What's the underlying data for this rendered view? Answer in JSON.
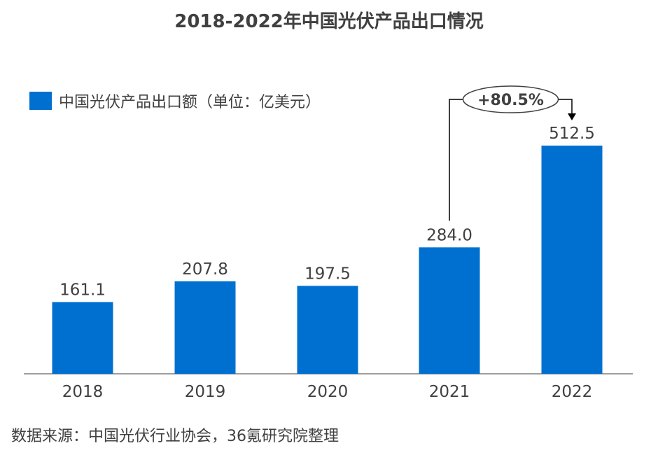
{
  "chart_data": {
    "type": "bar",
    "title": "2018-2022年中国光伏产品出口情况",
    "categories": [
      "2018",
      "2019",
      "2020",
      "2021",
      "2022"
    ],
    "series": [
      {
        "name": "中国光伏产品出口额（单位：亿美元）",
        "values": [
          161.1,
          207.8,
          197.5,
          284.0,
          512.5
        ]
      }
    ],
    "data_labels": [
      "161.1",
      "207.8",
      "197.5",
      "284.0",
      "512.5"
    ],
    "annotation": {
      "text": "+80.5%",
      "from_category": "2021",
      "to_category": "2022"
    },
    "ylim": [
      0,
      560
    ],
    "grid": false,
    "legend_position": "top-left",
    "xlabel": "",
    "ylabel": ""
  },
  "colors": {
    "bar": "#0070D0",
    "text": "#404040",
    "axis": "#7F7F7F"
  },
  "source": "数据来源：中国光伏行业协会，36氪研究院整理"
}
